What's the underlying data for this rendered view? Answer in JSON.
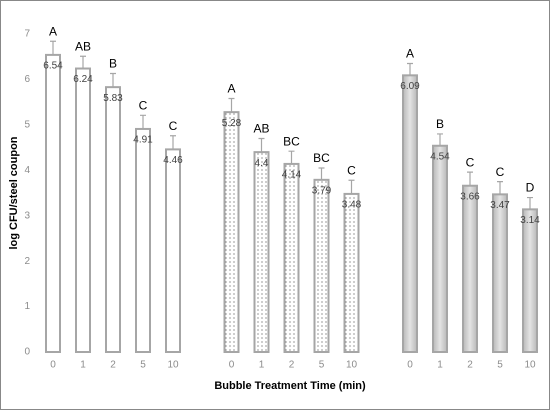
{
  "chart_data": {
    "type": "bar",
    "y_label": "log CFU/steel coupon",
    "x_label": "Bubble Treatment Time (min)",
    "ylim": [
      0,
      7
    ],
    "yticks": [
      0,
      1,
      2,
      3,
      4,
      5,
      6,
      7
    ],
    "grid": false,
    "groups": [
      {
        "style": "plain",
        "color": "#a6a6a6",
        "categories": [
          "0",
          "1",
          "2",
          "5",
          "10"
        ],
        "values": [
          6.54,
          6.24,
          5.83,
          4.91,
          4.46
        ],
        "errors": [
          0.3,
          0.27,
          0.3,
          0.3,
          0.3
        ],
        "letters": [
          "A",
          "AB",
          "B",
          "C",
          "C"
        ]
      },
      {
        "style": "dots",
        "color": "#a6a6a6",
        "categories": [
          "0",
          "1",
          "2",
          "5",
          "10"
        ],
        "values": [
          5.28,
          4.4,
          4.14,
          3.79,
          3.48
        ],
        "errors": [
          0.3,
          0.3,
          0.28,
          0.26,
          0.3
        ],
        "letters": [
          "A",
          "AB",
          "BC",
          "BC",
          "C"
        ]
      },
      {
        "style": "gradient",
        "color": "#a6a6a6",
        "categories": [
          "0",
          "1",
          "2",
          "5",
          "10"
        ],
        "values": [
          6.09,
          4.54,
          3.66,
          3.47,
          3.14
        ],
        "errors": [
          0.26,
          0.26,
          0.3,
          0.28,
          0.26
        ],
        "letters": [
          "A",
          "B",
          "C",
          "C",
          "D"
        ]
      }
    ]
  }
}
